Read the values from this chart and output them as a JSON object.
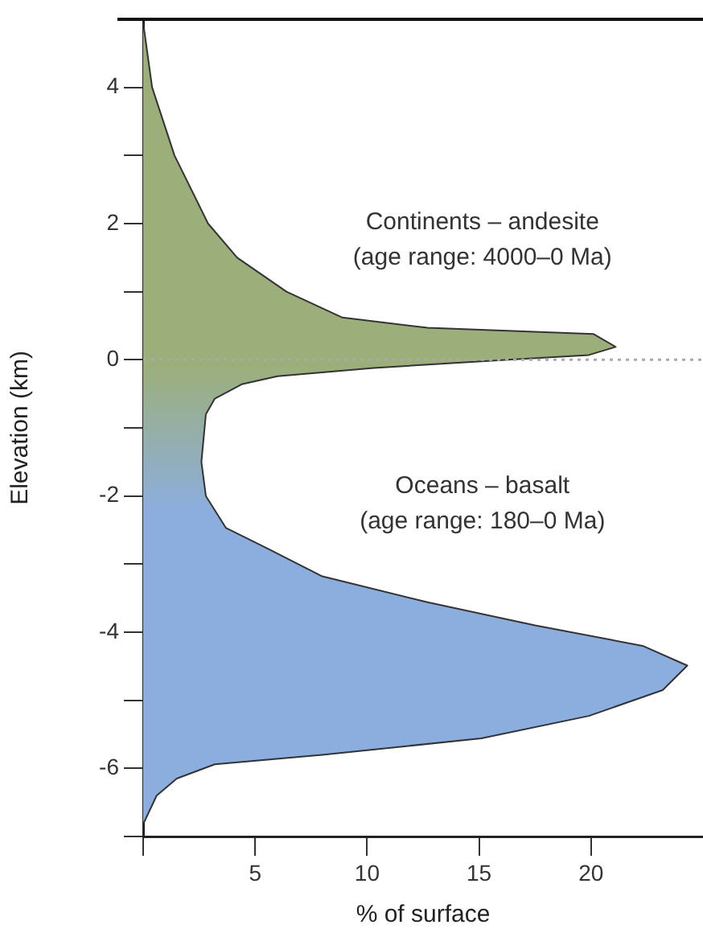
{
  "chart_data": {
    "type": "area",
    "orientation": "horizontal",
    "xlabel": "% of surface",
    "ylabel": "Elevation (km)",
    "xlim": [
      0,
      25
    ],
    "xticks": [
      {
        "value": 0,
        "label": null
      },
      5,
      10,
      15,
      20
    ],
    "ylim": [
      -7,
      5
    ],
    "yticks": [
      {
        "value": -7,
        "label": null
      },
      -6,
      {
        "value": -5,
        "label": null
      },
      -4,
      {
        "value": -3,
        "label": null
      },
      -2,
      {
        "value": -1,
        "label": null
      },
      0,
      {
        "value": 1,
        "label": null
      },
      2,
      {
        "value": 3,
        "label": null
      },
      4
    ],
    "grid": false,
    "legend": false,
    "ref_lines": [
      {
        "axis": "y",
        "value": 0,
        "line_style": "dotted",
        "color": "#aaaaaa"
      }
    ],
    "series": [
      {
        "color": "#9caf7b",
        "x": [
          4.95,
          4,
          3,
          2,
          1.5,
          1,
          0.62,
          0.47,
          0.38,
          0.19,
          0.07,
          0,
          -0.12,
          -0.24,
          -0.36,
          -0.57,
          -0.8
        ],
        "values": [
          0,
          0.4,
          1.4,
          2.9,
          4.2,
          6.4,
          8.9,
          12.7,
          20.1,
          21.1,
          19.9,
          16.3,
          10.3,
          6,
          4.4,
          3.2,
          2.8
        ]
      },
      {
        "color": "#8caede",
        "x": [
          -0.8,
          -1.5,
          -2,
          -2.47,
          -2.78,
          -3.18,
          -3.56,
          -3.9,
          -4.2,
          -4.49,
          -4.85,
          -5.23,
          -5.56,
          -5.8,
          -5.94,
          -6.15,
          -6.4,
          -6.82
        ],
        "values": [
          2.8,
          2.6,
          2.8,
          3.7,
          5.6,
          8,
          12.7,
          17.5,
          22.3,
          24.3,
          23.2,
          19.9,
          15.1,
          8,
          3.2,
          1.5,
          0.6,
          0
        ]
      }
    ],
    "annotations": [
      "Continents – andesite\n(age range: 4000–0 Ma)",
      "Oceans – basalt\n(age range: 180–0 Ma)"
    ]
  }
}
